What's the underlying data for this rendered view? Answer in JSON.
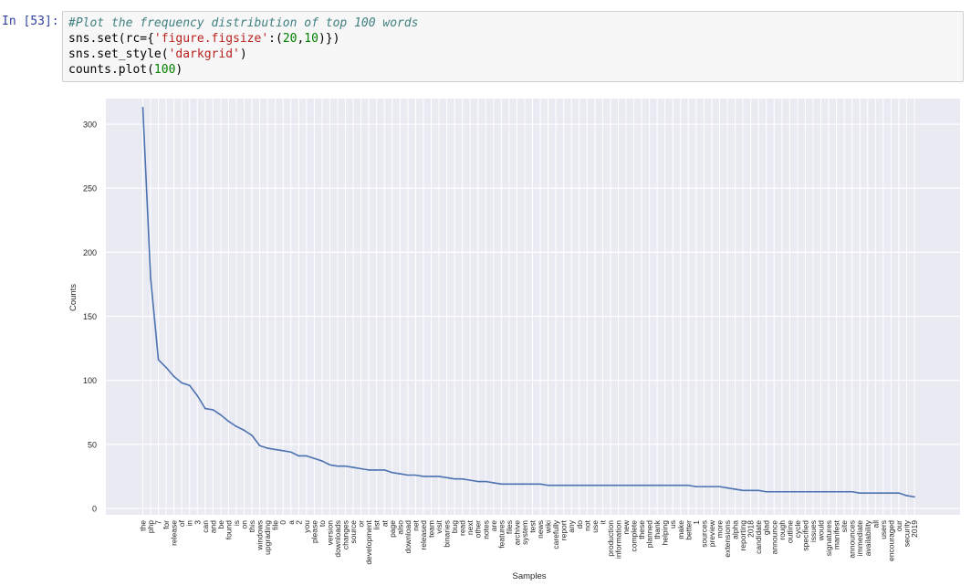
{
  "cell": {
    "prompt": "In [53]:",
    "code": {
      "line1": "#Plot the frequency distribution of top 100 words",
      "line2_a": "sns.set(rc={",
      "line2_str": "'figure.figsize'",
      "line2_b": ":(",
      "line2_n1": "20",
      "line2_c": ",",
      "line2_n2": "10",
      "line2_d": ")})",
      "line3_a": "sns.set_style(",
      "line3_str": "'darkgrid'",
      "line3_b": ")",
      "line4_a": "counts.plot(",
      "line4_n": "100",
      "line4_b": ")"
    }
  },
  "chart_data": {
    "type": "line",
    "xlabel": "Samples",
    "ylabel": "Counts",
    "ylim": [
      -5,
      320
    ],
    "yticks": [
      0,
      50,
      100,
      150,
      200,
      250,
      300
    ],
    "grid": true,
    "style": "darkgrid",
    "line_color": "#4c72b0",
    "background_color": "#eaeaf2",
    "categories": [
      "the",
      "php",
      "7",
      "for",
      "release",
      "of",
      "in",
      "3",
      "can",
      "and",
      "be",
      "found",
      "is",
      "on",
      "this",
      "windows",
      "upgrading",
      "file",
      "0",
      "a",
      "2",
      "you",
      "please",
      "to",
      "version",
      "downloads",
      "changes",
      "source",
      "or",
      "development",
      "list",
      "at",
      "page",
      "also",
      "download",
      "net",
      "released",
      "team",
      "visit",
      "binaries",
      "bug",
      "read",
      "next",
      "other",
      "notes",
      "are",
      "features",
      "files",
      "archive",
      "system",
      "test",
      "news",
      "wiki",
      "carefully",
      "report",
      "any",
      "do",
      "not",
      "use",
      "it",
      "production",
      "information",
      "new",
      "complete",
      "these",
      "planned",
      "thank",
      "helping",
      "us",
      "make",
      "better",
      "1",
      "sources",
      "preview",
      "more",
      "extensions",
      "alpha",
      "reporting",
      "2018",
      "candidate",
      "glad",
      "announce",
      "rough",
      "outline",
      "cycle",
      "specified",
      "issues",
      "would",
      "signatures",
      "manifest",
      "site",
      "announces",
      "immediate",
      "availability",
      "all",
      "users",
      "encouraged",
      "our",
      "security",
      "2019"
    ],
    "values": [
      313,
      180,
      116,
      110,
      103,
      98,
      96,
      88,
      78,
      77,
      73,
      68,
      64,
      61,
      57,
      49,
      47,
      46,
      45,
      44,
      41,
      41,
      39,
      37,
      34,
      33,
      33,
      32,
      31,
      30,
      30,
      30,
      28,
      27,
      26,
      26,
      25,
      25,
      25,
      24,
      23,
      23,
      22,
      21,
      21,
      20,
      19,
      19,
      19,
      19,
      19,
      19,
      18,
      18,
      18,
      18,
      18,
      18,
      18,
      18,
      18,
      18,
      18,
      18,
      18,
      18,
      18,
      18,
      18,
      18,
      18,
      17,
      17,
      17,
      17,
      16,
      15,
      14,
      14,
      14,
      13,
      13,
      13,
      13,
      13,
      13,
      13,
      13,
      13,
      13,
      13,
      13,
      12,
      12,
      12,
      12,
      12,
      12,
      10,
      9
    ]
  }
}
